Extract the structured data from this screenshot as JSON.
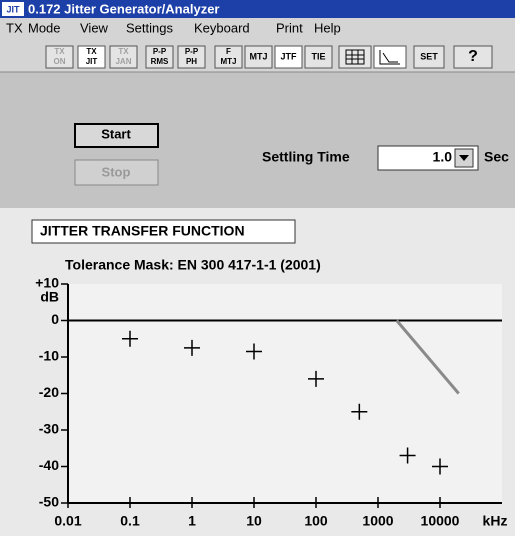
{
  "window": {
    "icon": "JIT",
    "title": "0.172 Jitter Generator/Analyzer"
  },
  "menu": [
    "TX",
    "Mode",
    "View",
    "Settings",
    "Keyboard",
    "Print",
    "Help"
  ],
  "toolbar": [
    [
      "TX",
      "ON"
    ],
    [
      "TX",
      "JIT"
    ],
    [
      "TX",
      "JAN"
    ],
    [
      "P-P",
      "RMS"
    ],
    [
      "P-P",
      "PH"
    ],
    [
      "F",
      "MTJ"
    ],
    [
      "MTJ"
    ],
    [
      "JTF"
    ],
    [
      "TIE"
    ],
    [
      "SET"
    ],
    [
      "?"
    ]
  ],
  "controls": {
    "start": "Start",
    "stop": "Stop",
    "settling_label": "Settling Time",
    "settling_value": "1.0",
    "settling_unit": "Sec"
  },
  "panel": {
    "title": "JITTER TRANSFER FUNCTION",
    "subtitle": "Tolerance Mask: EN 300 417-1-1 (2001)"
  },
  "chart_data": {
    "type": "scatter",
    "xscale": "log",
    "x": [
      0.1,
      1,
      10,
      100,
      500,
      3000,
      10000
    ],
    "values": [
      -5,
      -7.5,
      -8.5,
      -16,
      -25,
      -37,
      -40
    ],
    "color": "#000000",
    "lines": [
      {
        "color": "#000000",
        "x": [
          0.01,
          100000
        ],
        "values": [
          0,
          0
        ]
      },
      {
        "color": "#8a8a8a",
        "x": [
          2000,
          20000
        ],
        "values": [
          0,
          -20
        ]
      }
    ],
    "xlim": [
      0.01,
      100000
    ],
    "ylim": [
      -50,
      10
    ],
    "xticks": [
      0.01,
      0.1,
      1,
      10,
      100,
      1000,
      10000
    ],
    "yticks": [
      {
        "value": 10,
        "label": "+10"
      },
      0,
      -10,
      -20,
      -30,
      -40,
      -50
    ],
    "xlabel": "kHz",
    "ylabel": "dB"
  }
}
